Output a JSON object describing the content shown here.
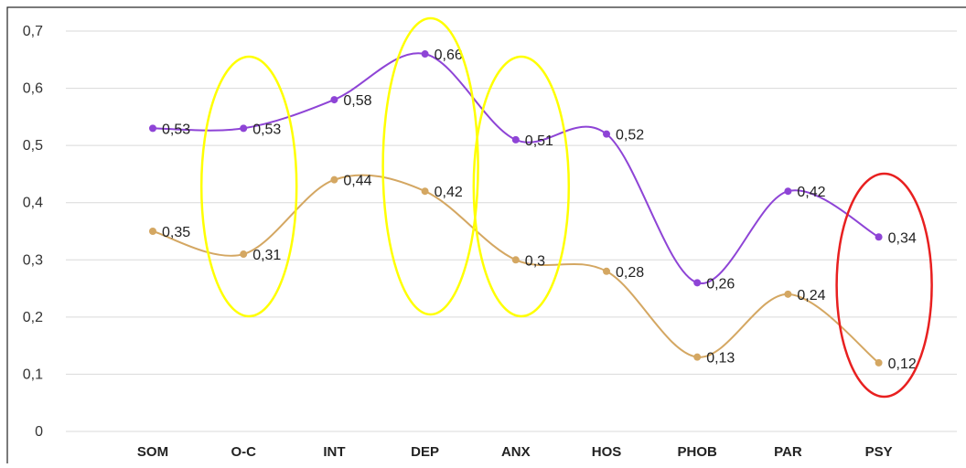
{
  "chart_data": {
    "type": "line",
    "categories": [
      "SOM",
      "O-C",
      "INT",
      "DEP",
      "ANX",
      "HOS",
      "PHOB",
      "PAR",
      "PSY"
    ],
    "series": [
      {
        "values": [
          0.53,
          0.53,
          0.58,
          0.66,
          0.51,
          0.52,
          0.26,
          0.42,
          0.34
        ],
        "labels": [
          "0,53",
          "0,53",
          "0,58",
          "0,66",
          "0,51",
          "0,52",
          "0,26",
          "0,42",
          "0,34"
        ],
        "color": "#8e44d6",
        "line_style": "smooth"
      },
      {
        "values": [
          0.35,
          0.31,
          0.44,
          0.42,
          0.3,
          0.28,
          0.13,
          0.24,
          0.12
        ],
        "labels": [
          "0,35",
          "0,31",
          "0,44",
          "0,42",
          "0,3",
          "0,28",
          "0,13",
          "0,24",
          "0,12"
        ],
        "color": "#d4a762",
        "line_style": "smooth"
      }
    ],
    "y_ticks": [
      0,
      0.1,
      0.2,
      0.3,
      0.4,
      0.5,
      0.6,
      0.7
    ],
    "y_tick_labels": [
      "0",
      "0,1",
      "0,2",
      "0,3",
      "0,4",
      "0,5",
      "0,6",
      "0,7"
    ],
    "ylim": [
      0,
      0.7
    ],
    "grid": true,
    "legend": "none",
    "annotations": [
      {
        "shape": "ellipse",
        "color": "#ffff00",
        "highlight": "O-C"
      },
      {
        "shape": "ellipse",
        "color": "#ffff00",
        "highlight": "DEP"
      },
      {
        "shape": "ellipse",
        "color": "#ffff00",
        "highlight": "ANX"
      },
      {
        "shape": "ellipse",
        "color": "#e82020",
        "highlight": "PSY"
      }
    ],
    "colors": {
      "grid": "#d9d9d9",
      "frame": "#222222"
    }
  }
}
